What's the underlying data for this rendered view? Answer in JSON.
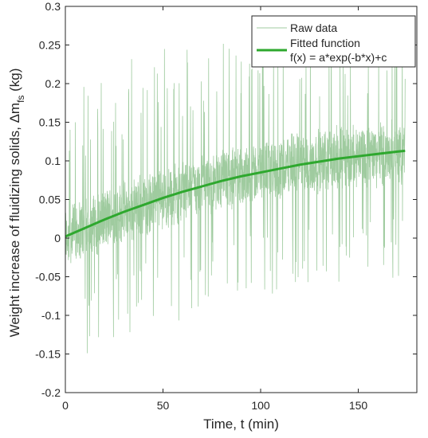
{
  "chart_data": {
    "type": "line",
    "xlabel": "Time, t (min)",
    "ylabel": {
      "main": "Weight increase of fluidizing solids, Δm",
      "subscript": "fs",
      "unit": " (kg)"
    },
    "xlim": [
      0,
      180
    ],
    "ylim": [
      -0.2,
      0.3
    ],
    "xticks": [
      0,
      50,
      100,
      150
    ],
    "yticks": [
      -0.2,
      -0.15,
      -0.1,
      -0.05,
      0,
      0.05,
      0.1,
      0.15,
      0.2,
      0.25,
      0.3
    ],
    "xtick_labels": [
      "0",
      "50",
      "100",
      "150"
    ],
    "ytick_labels": [
      "-0.2",
      "-0.15",
      "-0.1",
      "-0.05",
      "0",
      "0.05",
      "0.1",
      "0.15",
      "0.2",
      "0.25",
      "0.3"
    ],
    "grid": false,
    "legend": {
      "position": "top-right",
      "entries": [
        "Raw data",
        "Fitted function",
        "f(x) = a*exp(-b*x)+c"
      ]
    },
    "series": [
      {
        "name": "Raw data",
        "kind": "noisy-band",
        "color": "#9fcb9f",
        "x_range": [
          0,
          174
        ],
        "dense_band_halfwidth": 0.045,
        "spike_low_min": [
          -0.17,
          -0.12,
          -0.08,
          -0.05
        ],
        "spike_high_max": [
          0.18,
          0.25,
          0.27,
          0.29
        ],
        "spike_envelope_x": [
          0,
          40,
          100,
          174
        ]
      },
      {
        "name": "Fitted function",
        "kind": "fit",
        "color": "#2ea82e",
        "formula": "f(x) = a*exp(-b*x)+c",
        "x": [
          0,
          10,
          20,
          30,
          40,
          50,
          60,
          70,
          80,
          90,
          100,
          110,
          120,
          130,
          140,
          150,
          160,
          170,
          174
        ],
        "y": [
          0.002,
          0.013,
          0.024,
          0.034,
          0.043,
          0.052,
          0.06,
          0.067,
          0.074,
          0.08,
          0.085,
          0.09,
          0.095,
          0.099,
          0.103,
          0.106,
          0.109,
          0.112,
          0.113
        ]
      }
    ]
  }
}
